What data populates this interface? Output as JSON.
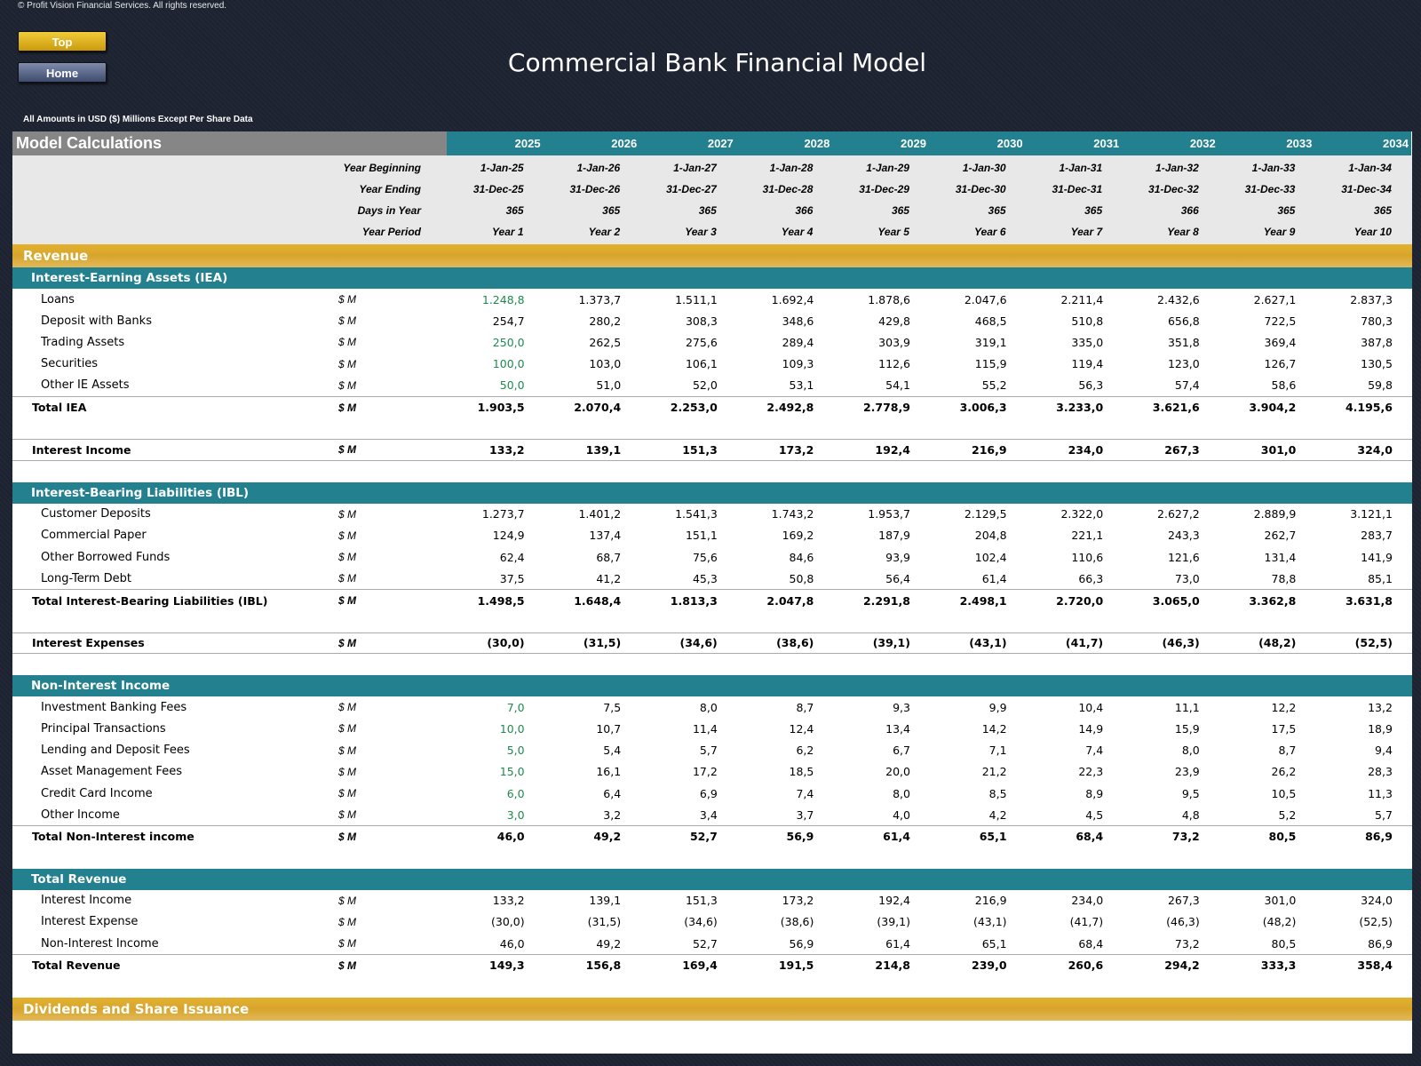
{
  "copyright": "© Profit Vision Financial Services. All rights reserved.",
  "nav": {
    "top_label": "Top",
    "home_label": "Home"
  },
  "title": "Commercial Bank Financial Model",
  "units_note": "All Amounts in  USD ($) Millions Except Per Share Data",
  "header": {
    "section_title": "Model Calculations",
    "years": [
      "2025",
      "2026",
      "2027",
      "2028",
      "2029",
      "2030",
      "2031",
      "2032",
      "2033",
      "2034"
    ]
  },
  "dates": {
    "year_beginning": {
      "label": "Year Beginning",
      "values": [
        "1-Jan-25",
        "1-Jan-26",
        "1-Jan-27",
        "1-Jan-28",
        "1-Jan-29",
        "1-Jan-30",
        "1-Jan-31",
        "1-Jan-32",
        "1-Jan-33",
        "1-Jan-34"
      ]
    },
    "year_ending": {
      "label": "Year Ending",
      "values": [
        "31-Dec-25",
        "31-Dec-26",
        "31-Dec-27",
        "31-Dec-28",
        "31-Dec-29",
        "31-Dec-30",
        "31-Dec-31",
        "31-Dec-32",
        "31-Dec-33",
        "31-Dec-34"
      ]
    },
    "days_in_year": {
      "label": "Days in Year",
      "values": [
        "365",
        "365",
        "365",
        "366",
        "365",
        "365",
        "365",
        "366",
        "365",
        "365"
      ]
    },
    "year_period": {
      "label": "Year Period",
      "values": [
        "Year 1",
        "Year 2",
        "Year 3",
        "Year 4",
        "Year 5",
        "Year 6",
        "Year 7",
        "Year 8",
        "Year 9",
        "Year 10"
      ]
    }
  },
  "revenue_band": "Revenue",
  "iea": {
    "title": "Interest-Earning Assets (IEA)",
    "rows": [
      {
        "label": "Loans",
        "unit": "$ M",
        "first_input": true,
        "values": [
          "1.248,8",
          "1.373,7",
          "1.511,1",
          "1.692,4",
          "1.878,6",
          "2.047,6",
          "2.211,4",
          "2.432,6",
          "2.627,1",
          "2.837,3"
        ]
      },
      {
        "label": "Deposit with Banks",
        "unit": "$ M",
        "first_input": false,
        "values": [
          "254,7",
          "280,2",
          "308,3",
          "348,6",
          "429,8",
          "468,5",
          "510,8",
          "656,8",
          "722,5",
          "780,3"
        ]
      },
      {
        "label": "Trading Assets",
        "unit": "$ M",
        "first_input": true,
        "values": [
          "250,0",
          "262,5",
          "275,6",
          "289,4",
          "303,9",
          "319,1",
          "335,0",
          "351,8",
          "369,4",
          "387,8"
        ]
      },
      {
        "label": "Securities",
        "unit": "$ M",
        "first_input": true,
        "values": [
          "100,0",
          "103,0",
          "106,1",
          "109,3",
          "112,6",
          "115,9",
          "119,4",
          "123,0",
          "126,7",
          "130,5"
        ]
      },
      {
        "label": "Other IE Assets",
        "unit": "$ M",
        "first_input": true,
        "values": [
          "50,0",
          "51,0",
          "52,0",
          "53,1",
          "54,1",
          "55,2",
          "56,3",
          "57,4",
          "58,6",
          "59,8"
        ]
      }
    ],
    "total": {
      "label": "Total IEA",
      "unit": "$ M",
      "values": [
        "1.903,5",
        "2.070,4",
        "2.253,0",
        "2.492,8",
        "2.778,9",
        "3.006,3",
        "3.233,0",
        "3.621,6",
        "3.904,2",
        "4.195,6"
      ]
    },
    "income": {
      "label": "Interest Income",
      "unit": "$ M",
      "values": [
        "133,2",
        "139,1",
        "151,3",
        "173,2",
        "192,4",
        "216,9",
        "234,0",
        "267,3",
        "301,0",
        "324,0"
      ]
    }
  },
  "ibl": {
    "title": "Interest-Bearing Liabilities (IBL)",
    "rows": [
      {
        "label": "Customer Deposits",
        "unit": "$ M",
        "first_input": false,
        "values": [
          "1.273,7",
          "1.401,2",
          "1.541,3",
          "1.743,2",
          "1.953,7",
          "2.129,5",
          "2.322,0",
          "2.627,2",
          "2.889,9",
          "3.121,1"
        ]
      },
      {
        "label": "Commercial Paper",
        "unit": "$ M",
        "first_input": false,
        "values": [
          "124,9",
          "137,4",
          "151,1",
          "169,2",
          "187,9",
          "204,8",
          "221,1",
          "243,3",
          "262,7",
          "283,7"
        ]
      },
      {
        "label": "Other Borrowed Funds",
        "unit": "$ M",
        "first_input": false,
        "values": [
          "62,4",
          "68,7",
          "75,6",
          "84,6",
          "93,9",
          "102,4",
          "110,6",
          "121,6",
          "131,4",
          "141,9"
        ]
      },
      {
        "label": "Long-Term Debt",
        "unit": "$ M",
        "first_input": false,
        "values": [
          "37,5",
          "41,2",
          "45,3",
          "50,8",
          "56,4",
          "61,4",
          "66,3",
          "73,0",
          "78,8",
          "85,1"
        ]
      }
    ],
    "total": {
      "label": "Total Interest-Bearing Liabilities (IBL)",
      "unit": "$ M",
      "values": [
        "1.498,5",
        "1.648,4",
        "1.813,3",
        "2.047,8",
        "2.291,8",
        "2.498,1",
        "2.720,0",
        "3.065,0",
        "3.362,8",
        "3.631,8"
      ]
    },
    "expenses": {
      "label": "Interest Expenses",
      "unit": "$ M",
      "values": [
        "(30,0)",
        "(31,5)",
        "(34,6)",
        "(38,6)",
        "(39,1)",
        "(43,1)",
        "(41,7)",
        "(46,3)",
        "(48,2)",
        "(52,5)"
      ]
    }
  },
  "nii": {
    "title": "Non-Interest Income",
    "rows": [
      {
        "label": "Investment Banking Fees",
        "unit": "$ M",
        "first_input": true,
        "values": [
          "7,0",
          "7,5",
          "8,0",
          "8,7",
          "9,3",
          "9,9",
          "10,4",
          "11,1",
          "12,2",
          "13,2"
        ]
      },
      {
        "label": "Principal Transactions",
        "unit": "$ M",
        "first_input": true,
        "values": [
          "10,0",
          "10,7",
          "11,4",
          "12,4",
          "13,4",
          "14,2",
          "14,9",
          "15,9",
          "17,5",
          "18,9"
        ]
      },
      {
        "label": "Lending and Deposit Fees",
        "unit": "$ M",
        "first_input": true,
        "values": [
          "5,0",
          "5,4",
          "5,7",
          "6,2",
          "6,7",
          "7,1",
          "7,4",
          "8,0",
          "8,7",
          "9,4"
        ]
      },
      {
        "label": "Asset Management Fees",
        "unit": "$ M",
        "first_input": true,
        "values": [
          "15,0",
          "16,1",
          "17,2",
          "18,5",
          "20,0",
          "21,2",
          "22,3",
          "23,9",
          "26,2",
          "28,3"
        ]
      },
      {
        "label": "Credit Card Income",
        "unit": "$ M",
        "first_input": true,
        "values": [
          "6,0",
          "6,4",
          "6,9",
          "7,4",
          "8,0",
          "8,5",
          "8,9",
          "9,5",
          "10,5",
          "11,3"
        ]
      },
      {
        "label": "Other Income",
        "unit": "$ M",
        "first_input": true,
        "values": [
          "3,0",
          "3,2",
          "3,4",
          "3,7",
          "4,0",
          "4,2",
          "4,5",
          "4,8",
          "5,2",
          "5,7"
        ]
      }
    ],
    "total": {
      "label": "Total Non-Interest income",
      "unit": "$ M",
      "values": [
        "46,0",
        "49,2",
        "52,7",
        "56,9",
        "61,4",
        "65,1",
        "68,4",
        "73,2",
        "80,5",
        "86,9"
      ]
    }
  },
  "total_revenue": {
    "title": "Total Revenue",
    "rows": [
      {
        "label": "Interest Income",
        "unit": "$ M",
        "first_input": false,
        "values": [
          "133,2",
          "139,1",
          "151,3",
          "173,2",
          "192,4",
          "216,9",
          "234,0",
          "267,3",
          "301,0",
          "324,0"
        ]
      },
      {
        "label": "Interest Expense",
        "unit": "$ M",
        "first_input": false,
        "values": [
          "(30,0)",
          "(31,5)",
          "(34,6)",
          "(38,6)",
          "(39,1)",
          "(43,1)",
          "(41,7)",
          "(46,3)",
          "(48,2)",
          "(52,5)"
        ]
      },
      {
        "label": "Non-Interest Income",
        "unit": "$ M",
        "first_input": false,
        "values": [
          "46,0",
          "49,2",
          "52,7",
          "56,9",
          "61,4",
          "65,1",
          "68,4",
          "73,2",
          "80,5",
          "86,9"
        ]
      }
    ],
    "total": {
      "label": "Total Revenue",
      "unit": "$ M",
      "values": [
        "149,3",
        "156,8",
        "169,4",
        "191,5",
        "214,8",
        "239,0",
        "260,6",
        "294,2",
        "333,3",
        "358,4"
      ]
    }
  },
  "dividends_band": "Dividends and Share Issuance",
  "colors": {
    "teal": "#22808f",
    "gold": "#d8a52c",
    "input_green": "#1f8a4c",
    "gray_header": "#868686"
  }
}
